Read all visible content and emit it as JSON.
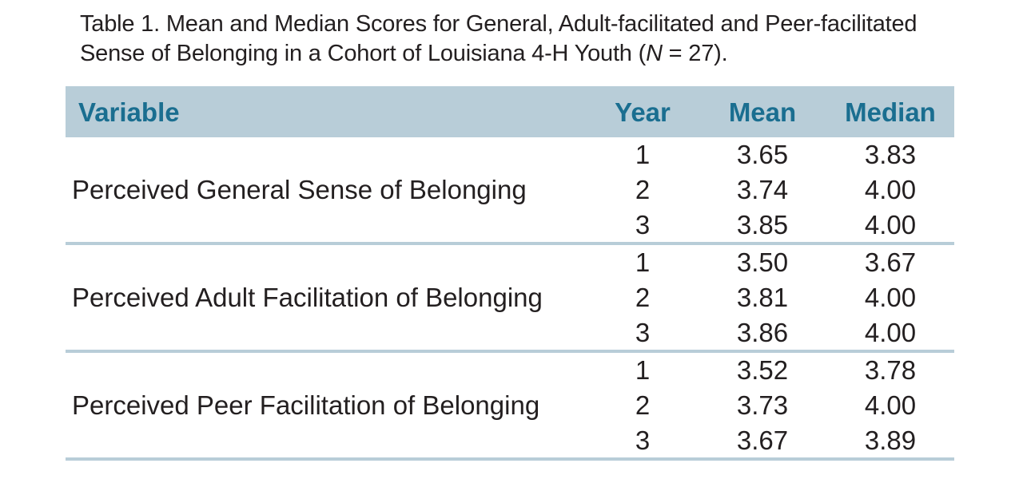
{
  "caption": {
    "text_before": "Table 1. Mean and Median Scores for General, Adult-facilitated and Peer-facilitated Sense of Belonging in a Cohort of Louisiana 4-H Youth (",
    "n_symbol": "N",
    "text_after": " = 27)."
  },
  "table": {
    "headers": {
      "variable": "Variable",
      "year": "Year",
      "mean": "Mean",
      "median": "Median"
    },
    "groups": [
      {
        "label": "Perceived General Sense of Belonging",
        "rows": [
          {
            "year": "1",
            "mean": "3.65",
            "median": "3.83"
          },
          {
            "year": "2",
            "mean": "3.74",
            "median": "4.00"
          },
          {
            "year": "3",
            "mean": "3.85",
            "median": "4.00"
          }
        ]
      },
      {
        "label": "Perceived Adult Facilitation of Belonging",
        "rows": [
          {
            "year": "1",
            "mean": "3.50",
            "median": "3.67"
          },
          {
            "year": "2",
            "mean": "3.81",
            "median": "4.00"
          },
          {
            "year": "3",
            "mean": "3.86",
            "median": "4.00"
          }
        ]
      },
      {
        "label": "Perceived Peer Facilitation of Belonging",
        "rows": [
          {
            "year": "1",
            "mean": "3.52",
            "median": "3.78"
          },
          {
            "year": "2",
            "mean": "3.73",
            "median": "4.00"
          },
          {
            "year": "3",
            "mean": "3.67",
            "median": "3.89"
          }
        ]
      }
    ]
  }
}
